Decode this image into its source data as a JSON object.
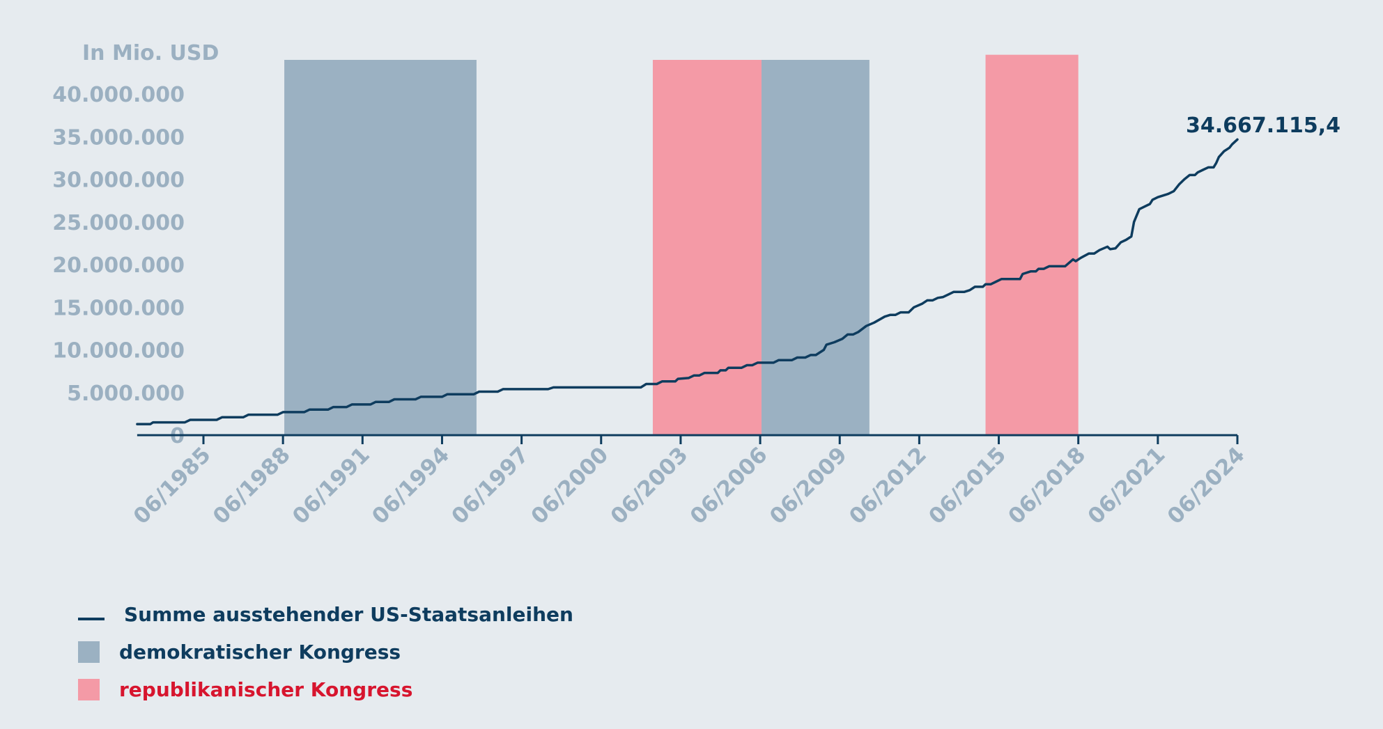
{
  "chart_data": {
    "type": "line",
    "unit_label": "In Mio. USD",
    "ylim": [
      0,
      45000000
    ],
    "y_ticks": [
      0,
      5000000,
      10000000,
      15000000,
      20000000,
      25000000,
      30000000,
      35000000,
      40000000
    ],
    "y_tick_labels": [
      "0",
      "5.000.000",
      "10.000.000",
      "15.000.000",
      "20.000.000",
      "25.000.000",
      "30.000.000",
      "35.000.000",
      "40.000.000"
    ],
    "xlim": [
      1983.0,
      2024.5
    ],
    "x_ticks": [
      1985.5,
      1988.5,
      1991.5,
      1994.5,
      1997.5,
      2000.5,
      2003.5,
      2006.5,
      2009.5,
      2012.5,
      2015.5,
      2018.5,
      2021.5,
      2024.5
    ],
    "x_tick_labels": [
      "06/1985",
      "06/1988",
      "06/1991",
      "06/1994",
      "06/1997",
      "06/2000",
      "06/2003",
      "06/2006",
      "06/2009",
      "06/2012",
      "06/2015",
      "06/2018",
      "06/2021",
      "06/2024"
    ],
    "end_label": "34.667.115,4",
    "grid": false,
    "series": [
      {
        "name": "Summe ausstehender US-Staatsanleihen",
        "color": "#0e3c5e",
        "points": [
          [
            1983.0,
            1300000
          ],
          [
            1983.5,
            1300000
          ],
          [
            1983.6,
            1500000
          ],
          [
            1984.8,
            1500000
          ],
          [
            1985.0,
            1800000
          ],
          [
            1986.0,
            1800000
          ],
          [
            1986.2,
            2100000
          ],
          [
            1987.0,
            2100000
          ],
          [
            1987.2,
            2400000
          ],
          [
            1988.3,
            2400000
          ],
          [
            1988.5,
            2700000
          ],
          [
            1989.3,
            2700000
          ],
          [
            1989.5,
            3000000
          ],
          [
            1990.2,
            3000000
          ],
          [
            1990.4,
            3300000
          ],
          [
            1990.9,
            3300000
          ],
          [
            1991.1,
            3600000
          ],
          [
            1991.8,
            3600000
          ],
          [
            1992.0,
            3900000
          ],
          [
            1992.5,
            3900000
          ],
          [
            1992.7,
            4200000
          ],
          [
            1993.5,
            4200000
          ],
          [
            1993.7,
            4500000
          ],
          [
            1994.5,
            4500000
          ],
          [
            1994.7,
            4800000
          ],
          [
            1995.7,
            4800000
          ],
          [
            1995.9,
            5100000
          ],
          [
            1996.6,
            5100000
          ],
          [
            1996.8,
            5400000
          ],
          [
            1998.5,
            5400000
          ],
          [
            1998.7,
            5600000
          ],
          [
            2002.0,
            5600000
          ],
          [
            2002.2,
            6000000
          ],
          [
            2002.6,
            6000000
          ],
          [
            2002.8,
            6300000
          ],
          [
            2003.3,
            6300000
          ],
          [
            2003.4,
            6600000
          ],
          [
            2003.8,
            6700000
          ],
          [
            2004.0,
            7000000
          ],
          [
            2004.2,
            7000000
          ],
          [
            2004.4,
            7300000
          ],
          [
            2004.9,
            7300000
          ],
          [
            2005.0,
            7600000
          ],
          [
            2005.2,
            7600000
          ],
          [
            2005.3,
            7900000
          ],
          [
            2005.8,
            7900000
          ],
          [
            2006.0,
            8200000
          ],
          [
            2006.2,
            8200000
          ],
          [
            2006.4,
            8500000
          ],
          [
            2007.0,
            8500000
          ],
          [
            2007.2,
            8800000
          ],
          [
            2007.7,
            8800000
          ],
          [
            2007.9,
            9100000
          ],
          [
            2008.2,
            9100000
          ],
          [
            2008.4,
            9400000
          ],
          [
            2008.6,
            9400000
          ],
          [
            2008.9,
            10000000
          ],
          [
            2009.0,
            10600000
          ],
          [
            2009.3,
            10900000
          ],
          [
            2009.6,
            11300000
          ],
          [
            2009.8,
            11800000
          ],
          [
            2010.0,
            11800000
          ],
          [
            2010.2,
            12100000
          ],
          [
            2010.5,
            12800000
          ],
          [
            2010.8,
            13200000
          ],
          [
            2011.2,
            13900000
          ],
          [
            2011.4,
            14100000
          ],
          [
            2011.6,
            14100000
          ],
          [
            2011.8,
            14400000
          ],
          [
            2012.1,
            14400000
          ],
          [
            2012.3,
            15000000
          ],
          [
            2012.6,
            15400000
          ],
          [
            2012.8,
            15800000
          ],
          [
            2013.0,
            15800000
          ],
          [
            2013.2,
            16100000
          ],
          [
            2013.4,
            16200000
          ],
          [
            2013.6,
            16500000
          ],
          [
            2013.8,
            16800000
          ],
          [
            2014.2,
            16800000
          ],
          [
            2014.4,
            17000000
          ],
          [
            2014.6,
            17400000
          ],
          [
            2014.9,
            17400000
          ],
          [
            2015.0,
            17700000
          ],
          [
            2015.2,
            17700000
          ],
          [
            2015.4,
            18000000
          ],
          [
            2015.6,
            18300000
          ],
          [
            2016.3,
            18300000
          ],
          [
            2016.4,
            18900000
          ],
          [
            2016.7,
            19200000
          ],
          [
            2016.9,
            19200000
          ],
          [
            2017.0,
            19500000
          ],
          [
            2017.2,
            19500000
          ],
          [
            2017.4,
            19800000
          ],
          [
            2018.0,
            19800000
          ],
          [
            2018.3,
            20600000
          ],
          [
            2018.4,
            20400000
          ],
          [
            2018.6,
            20800000
          ],
          [
            2018.9,
            21300000
          ],
          [
            2019.1,
            21300000
          ],
          [
            2019.3,
            21700000
          ],
          [
            2019.6,
            22100000
          ],
          [
            2019.7,
            21800000
          ],
          [
            2019.9,
            21900000
          ],
          [
            2020.1,
            22600000
          ],
          [
            2020.3,
            22900000
          ],
          [
            2020.5,
            23300000
          ],
          [
            2020.6,
            25000000
          ],
          [
            2020.8,
            26500000
          ],
          [
            2021.0,
            26800000
          ],
          [
            2021.2,
            27100000
          ],
          [
            2021.3,
            27600000
          ],
          [
            2021.5,
            27900000
          ],
          [
            2021.8,
            28200000
          ],
          [
            2021.9,
            28300000
          ],
          [
            2022.1,
            28600000
          ],
          [
            2022.3,
            29400000
          ],
          [
            2022.5,
            30000000
          ],
          [
            2022.7,
            30500000
          ],
          [
            2022.9,
            30500000
          ],
          [
            2023.0,
            30800000
          ],
          [
            2023.2,
            31100000
          ],
          [
            2023.4,
            31400000
          ],
          [
            2023.6,
            31400000
          ],
          [
            2023.7,
            31900000
          ],
          [
            2023.8,
            32600000
          ],
          [
            2024.0,
            33300000
          ],
          [
            2024.2,
            33700000
          ],
          [
            2024.3,
            34100000
          ],
          [
            2024.5,
            34667115.4
          ]
        ]
      }
    ],
    "bands": [
      {
        "party": "demokratischer Kongress",
        "start": 1988.55,
        "end": 1995.8,
        "top": 44000000,
        "color": "#9bb1c2"
      },
      {
        "party": "republikanischer Kongress",
        "start": 2002.45,
        "end": 2006.55,
        "top": 44000000,
        "color": "#f49aa6"
      },
      {
        "party": "demokratischer Kongress",
        "start": 2006.55,
        "end": 2010.62,
        "top": 44000000,
        "color": "#9bb1c2"
      },
      {
        "party": "republikanischer Kongress",
        "start": 2015.0,
        "end": 2018.5,
        "top": 44600000,
        "color": "#f49aa6"
      }
    ]
  },
  "legend": {
    "line_label": "Summe ausstehender US-Staatsanleihen",
    "dem_label": "demokratischer Kongress",
    "rep_label": "republikanischer Kongress",
    "line_color": "#0e3c5e",
    "dem_color": "#9bb1c2",
    "rep_color": "#f49aa6",
    "rep_text_color": "#d7152e",
    "text_color": "#0e3c5e"
  }
}
